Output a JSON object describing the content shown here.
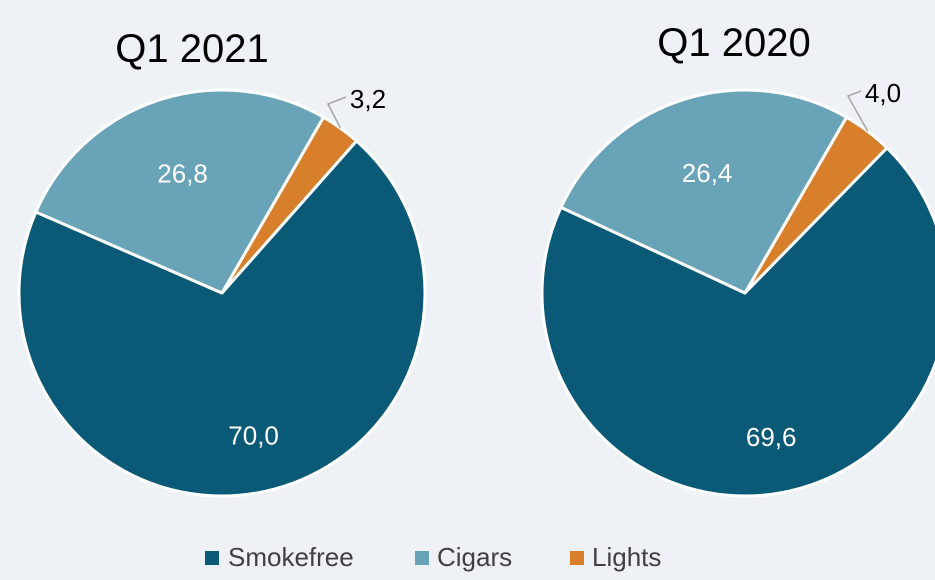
{
  "colors": {
    "background": "#eef2f6",
    "Smokefree": "#0a5a77",
    "Cigars": "#68a3b7",
    "Lights": "#d77f2b"
  },
  "legend": [
    {
      "name": "Smokefree",
      "color": "#0a5a77"
    },
    {
      "name": "Cigars",
      "color": "#68a3b7"
    },
    {
      "name": "Lights",
      "color": "#d77f2b"
    }
  ],
  "chart_data": [
    {
      "type": "pie",
      "title": "Q1 2021",
      "slices": [
        {
          "name": "Lights",
          "value": 3.2,
          "label": "3,2"
        },
        {
          "name": "Smokefree",
          "value": 70.0,
          "label": "70,0"
        },
        {
          "name": "Cigars",
          "value": 26.8,
          "label": "26,8"
        }
      ]
    },
    {
      "type": "pie",
      "title": "Q1 2020",
      "slices": [
        {
          "name": "Lights",
          "value": 4.0,
          "label": "4,0"
        },
        {
          "name": "Smokefree",
          "value": 69.6,
          "label": "69,6"
        },
        {
          "name": "Cigars",
          "value": 26.4,
          "label": "26,4"
        }
      ]
    }
  ]
}
